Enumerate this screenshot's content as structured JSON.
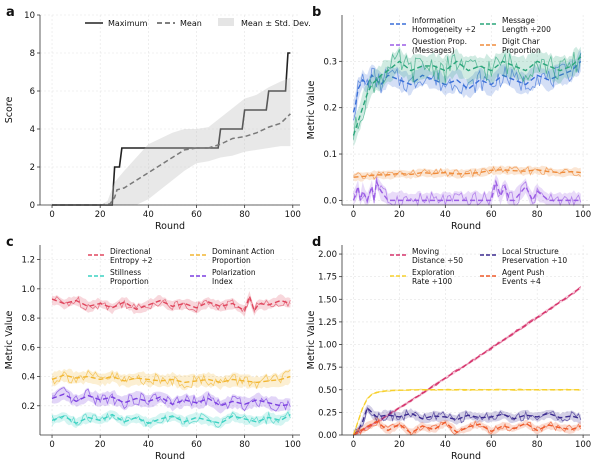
{
  "chart_data": [
    {
      "panel_label": "a",
      "type": "line",
      "xlabel": "Round",
      "ylabel": "Score",
      "xlim": [
        -5,
        103
      ],
      "ylim": [
        0,
        10
      ],
      "xticks": [
        0,
        20,
        40,
        60,
        80,
        100
      ],
      "yticks": [
        0,
        2,
        4,
        6,
        8,
        10
      ],
      "grid": true,
      "legend_position": "top",
      "legend_entries": [
        "Maximum",
        "Mean",
        "Mean ± Std. Dev."
      ],
      "series": [
        {
          "name": "Maximum",
          "style": "solid-step",
          "color": "#222222",
          "x": [
            0,
            25,
            26,
            28,
            29,
            30,
            49,
            50,
            69,
            70,
            79,
            80,
            89,
            90,
            97,
            98,
            99
          ],
          "values": [
            0,
            0,
            2,
            2,
            3,
            3,
            3,
            3,
            3,
            4,
            4,
            5,
            5,
            6,
            6,
            8,
            8
          ]
        },
        {
          "name": "Mean",
          "style": "dashed",
          "color": "#555555",
          "x": [
            0,
            20,
            24,
            26,
            27,
            30,
            35,
            40,
            45,
            50,
            55,
            60,
            65,
            70,
            75,
            80,
            85,
            90,
            95,
            99
          ],
          "values": [
            0,
            0,
            0.05,
            0.4,
            0.8,
            0.9,
            1.3,
            1.7,
            2.1,
            2.5,
            2.9,
            3.0,
            3.0,
            3.2,
            3.5,
            3.6,
            3.8,
            4.1,
            4.3,
            4.8
          ]
        },
        {
          "name": "Mean ± Std. Dev.",
          "style": "band",
          "color": "#bdbdbd",
          "x": [
            0,
            20,
            23,
            26,
            30,
            35,
            40,
            45,
            50,
            55,
            60,
            65,
            70,
            75,
            80,
            85,
            90,
            95,
            99
          ],
          "lower": [
            0,
            0,
            0,
            0,
            0,
            0,
            0.3,
            0.8,
            1.3,
            1.8,
            2.2,
            2.3,
            2.5,
            2.6,
            2.8,
            2.9,
            3.0,
            3.1,
            3.1
          ],
          "upper": [
            0,
            0,
            0.2,
            1.2,
            1.8,
            2.5,
            3.2,
            3.5,
            3.8,
            4.0,
            4.0,
            4.1,
            4.6,
            5.1,
            5.6,
            5.8,
            6.2,
            6.5,
            6.7
          ]
        }
      ]
    },
    {
      "panel_label": "b",
      "type": "line",
      "xlabel": "Round",
      "ylabel": "Metric Value",
      "xlim": [
        -5,
        103
      ],
      "ylim": [
        -0.01,
        0.4
      ],
      "xticks": [
        0,
        20,
        40,
        60,
        80,
        100
      ],
      "yticks": [
        0.0,
        0.1,
        0.2,
        0.3
      ],
      "grid": true,
      "legend_position": "top",
      "series": [
        {
          "name": "Information Homogeneity ÷2",
          "color": "#3a6fd8",
          "x": [
            0,
            1,
            2,
            4,
            6,
            8,
            10,
            12,
            15,
            20,
            25,
            30,
            35,
            40,
            45,
            50,
            55,
            60,
            65,
            70,
            75,
            80,
            85,
            90,
            95,
            99
          ],
          "values": [
            0.19,
            0.21,
            0.24,
            0.26,
            0.25,
            0.27,
            0.26,
            0.25,
            0.27,
            0.26,
            0.25,
            0.27,
            0.26,
            0.25,
            0.26,
            0.24,
            0.26,
            0.25,
            0.27,
            0.26,
            0.25,
            0.27,
            0.26,
            0.27,
            0.28,
            0.3
          ],
          "band_half_width": 0.025
        },
        {
          "name": "Message Length ÷200",
          "color": "#2aa57a",
          "x": [
            0,
            2,
            4,
            6,
            8,
            10,
            12,
            15,
            20,
            25,
            30,
            35,
            40,
            45,
            50,
            55,
            60,
            65,
            70,
            75,
            80,
            85,
            90,
            95,
            99
          ],
          "values": [
            0.14,
            0.17,
            0.2,
            0.23,
            0.25,
            0.26,
            0.27,
            0.28,
            0.3,
            0.28,
            0.29,
            0.29,
            0.28,
            0.3,
            0.28,
            0.29,
            0.28,
            0.3,
            0.29,
            0.28,
            0.3,
            0.29,
            0.28,
            0.29,
            0.31
          ],
          "band_half_width": 0.03
        },
        {
          "name": "Question Prop. (Messages)",
          "color": "#9b5de5",
          "x": [
            0,
            2,
            3,
            4,
            6,
            8,
            9,
            10,
            12,
            15,
            20,
            25,
            30,
            35,
            40,
            45,
            50,
            55,
            60,
            62,
            64,
            66,
            68,
            70,
            75,
            78,
            80,
            85,
            90,
            95,
            99
          ],
          "values": [
            0.0,
            0.03,
            0.0,
            0.02,
            0.0,
            0.03,
            0.0,
            0.04,
            0.02,
            0.0,
            0.0,
            0.0,
            0.0,
            0.0,
            0.0,
            0.0,
            0.0,
            0.0,
            0.0,
            0.04,
            0.01,
            0.03,
            0.0,
            0.0,
            0.03,
            0.0,
            0.02,
            0.0,
            0.0,
            0.0,
            0.0
          ],
          "band_half_width": 0.02
        },
        {
          "name": "Digit Char Proportion",
          "color": "#ef8c3b",
          "x": [
            0,
            5,
            10,
            15,
            20,
            25,
            30,
            35,
            40,
            45,
            50,
            55,
            60,
            65,
            70,
            75,
            80,
            85,
            90,
            95,
            99
          ],
          "values": [
            0.05,
            0.052,
            0.055,
            0.055,
            0.058,
            0.056,
            0.06,
            0.058,
            0.06,
            0.057,
            0.058,
            0.06,
            0.065,
            0.066,
            0.064,
            0.063,
            0.066,
            0.062,
            0.06,
            0.062,
            0.06
          ],
          "band_half_width": 0.01
        }
      ]
    },
    {
      "panel_label": "c",
      "type": "line",
      "xlabel": "Round",
      "ylabel": "Metric Value",
      "xlim": [
        -5,
        103
      ],
      "ylim": [
        0.0,
        1.3
      ],
      "xticks": [
        0,
        20,
        40,
        60,
        80,
        100
      ],
      "yticks": [
        0.2,
        0.4,
        0.6,
        0.8,
        1.0,
        1.2
      ],
      "grid": true,
      "legend_position": "top",
      "series": [
        {
          "name": "Directional Entropy ÷2",
          "color": "#e0475e",
          "x": [
            0,
            5,
            10,
            15,
            20,
            25,
            30,
            35,
            40,
            45,
            50,
            55,
            60,
            65,
            70,
            75,
            80,
            82,
            84,
            86,
            90,
            95,
            99
          ],
          "values": [
            0.93,
            0.9,
            0.92,
            0.88,
            0.9,
            0.87,
            0.91,
            0.86,
            0.89,
            0.92,
            0.88,
            0.9,
            0.87,
            0.91,
            0.88,
            0.9,
            0.85,
            0.95,
            0.85,
            0.9,
            0.89,
            0.92,
            0.9
          ],
          "band_half_width": 0.04
        },
        {
          "name": "Dominant Action Proportion",
          "color": "#f2b632",
          "x": [
            0,
            5,
            10,
            15,
            20,
            25,
            30,
            35,
            40,
            45,
            50,
            55,
            60,
            65,
            70,
            75,
            80,
            85,
            90,
            95,
            99
          ],
          "values": [
            0.38,
            0.41,
            0.39,
            0.4,
            0.38,
            0.4,
            0.37,
            0.39,
            0.38,
            0.37,
            0.38,
            0.36,
            0.37,
            0.38,
            0.36,
            0.38,
            0.37,
            0.36,
            0.37,
            0.38,
            0.4
          ],
          "band_half_width": 0.05
        },
        {
          "name": "Stillness Proportion",
          "color": "#3cd2c2",
          "x": [
            0,
            5,
            10,
            15,
            20,
            25,
            30,
            35,
            40,
            45,
            50,
            55,
            60,
            65,
            70,
            75,
            80,
            85,
            90,
            95,
            99
          ],
          "values": [
            0.1,
            0.13,
            0.08,
            0.12,
            0.1,
            0.14,
            0.09,
            0.12,
            0.08,
            0.11,
            0.13,
            0.09,
            0.12,
            0.1,
            0.08,
            0.13,
            0.11,
            0.09,
            0.12,
            0.1,
            0.14
          ],
          "band_half_width": 0.04
        },
        {
          "name": "Polarization Index",
          "color": "#7b3fe0",
          "x": [
            0,
            5,
            10,
            15,
            20,
            25,
            30,
            35,
            40,
            45,
            50,
            55,
            60,
            65,
            70,
            75,
            80,
            85,
            90,
            95,
            99
          ],
          "values": [
            0.25,
            0.28,
            0.23,
            0.27,
            0.24,
            0.26,
            0.22,
            0.25,
            0.23,
            0.26,
            0.21,
            0.24,
            0.22,
            0.25,
            0.2,
            0.23,
            0.21,
            0.24,
            0.22,
            0.2,
            0.21
          ],
          "band_half_width": 0.05
        }
      ]
    },
    {
      "panel_label": "d",
      "type": "line",
      "xlabel": "Round",
      "ylabel": "Metric Value",
      "xlim": [
        -5,
        103
      ],
      "ylim": [
        0.0,
        2.1
      ],
      "xticks": [
        0,
        20,
        40,
        60,
        80,
        100
      ],
      "yticks": [
        0.0,
        0.25,
        0.5,
        0.75,
        1.0,
        1.25,
        1.5,
        1.75,
        2.0
      ],
      "ytick_labels": [
        "0.00",
        "0.25",
        "0.50",
        "0.75",
        "1.00",
        "1.25",
        "1.50",
        "1.75",
        "2.00"
      ],
      "grid": true,
      "legend_position": "top",
      "series": [
        {
          "name": "Moving Distance ÷50",
          "color": "#d6336c",
          "x": [
            0,
            10,
            20,
            30,
            40,
            50,
            60,
            70,
            80,
            90,
            99
          ],
          "values": [
            0.0,
            0.14,
            0.3,
            0.46,
            0.63,
            0.79,
            0.96,
            1.13,
            1.3,
            1.47,
            1.63
          ],
          "band_half_width": 0.02
        },
        {
          "name": "Local Structure Preservation ÷10",
          "color": "#3b2a8f",
          "x": [
            0,
            2,
            4,
            6,
            8,
            10,
            15,
            20,
            25,
            30,
            35,
            40,
            45,
            50,
            55,
            60,
            65,
            70,
            75,
            80,
            85,
            90,
            95,
            99
          ],
          "values": [
            0.0,
            0.05,
            0.15,
            0.3,
            0.25,
            0.2,
            0.22,
            0.2,
            0.24,
            0.18,
            0.21,
            0.2,
            0.17,
            0.22,
            0.19,
            0.2,
            0.23,
            0.18,
            0.22,
            0.2,
            0.24,
            0.19,
            0.21,
            0.18
          ],
          "band_half_width": 0.06
        },
        {
          "name": "Exploration Rate ÷100",
          "color": "#f7d02c",
          "x": [
            0,
            2,
            4,
            6,
            8,
            10,
            15,
            20,
            30,
            40,
            50,
            60,
            70,
            80,
            90,
            99
          ],
          "values": [
            0.0,
            0.15,
            0.3,
            0.4,
            0.45,
            0.47,
            0.49,
            0.495,
            0.5,
            0.5,
            0.5,
            0.5,
            0.5,
            0.5,
            0.5,
            0.5
          ],
          "band_half_width": 0.01
        },
        {
          "name": "Agent Push Events ÷4",
          "color": "#ef5a2a",
          "x": [
            0,
            5,
            10,
            15,
            20,
            25,
            30,
            35,
            40,
            45,
            50,
            55,
            60,
            65,
            70,
            75,
            80,
            85,
            90,
            95,
            99
          ],
          "values": [
            0.0,
            0.08,
            0.15,
            0.05,
            0.12,
            0.02,
            0.1,
            0.06,
            0.14,
            0.03,
            0.09,
            0.12,
            0.04,
            0.1,
            0.07,
            0.13,
            0.05,
            0.11,
            0.08,
            0.06,
            0.1
          ],
          "band_half_width": 0.05
        }
      ]
    }
  ]
}
